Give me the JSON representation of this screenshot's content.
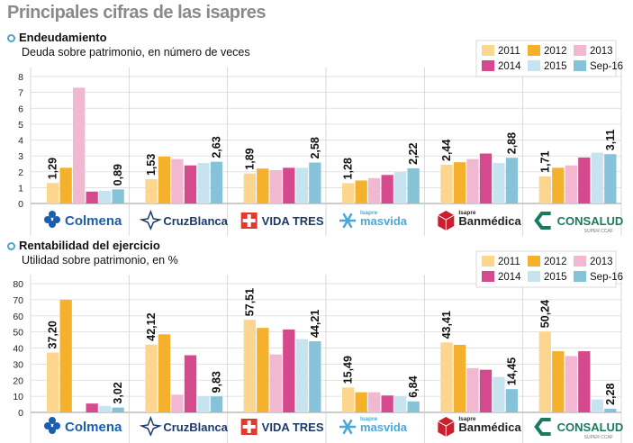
{
  "page_title": "Principales cifras de las isapres",
  "legend": [
    {
      "label": "2011",
      "color": "#fcd68f"
    },
    {
      "label": "2012",
      "color": "#f5b02c"
    },
    {
      "label": "2013",
      "color": "#f2b8d2"
    },
    {
      "label": "2014",
      "color": "#d44a8c"
    },
    {
      "label": "2015",
      "color": "#c7e3ef"
    },
    {
      "label": "Sep-16",
      "color": "#86c3d8"
    }
  ],
  "companies": [
    {
      "name": "Colmena",
      "logo_color": "#1a5fae",
      "icon": "colmena-cross-icon"
    },
    {
      "name": "CruzBlanca",
      "logo_color": "#1b3a6b",
      "icon": "cruzblanca-star-icon"
    },
    {
      "name": "VIDA TRES",
      "logo_color": "#1b3a6b",
      "icon": "vidatres-cross-icon"
    },
    {
      "name": "masvida",
      "prefix": "Isapre",
      "logo_color": "#4aa8d8",
      "icon": "masvida-snowflake-icon"
    },
    {
      "name": "Banmédica",
      "prefix": "Isapre",
      "logo_color": "#222222",
      "icon": "banmedica-cube-icon"
    },
    {
      "name": "CONSALUD",
      "suffix": "SUPER CCAF",
      "logo_color": "#1a7a5e",
      "icon": "consalud-c-icon"
    }
  ],
  "chart_data": [
    {
      "type": "bar",
      "heading": "Endeudamiento",
      "subtitle": "Deuda sobre patrimonio, en número de veces",
      "categories": [
        "Colmena",
        "CruzBlanca",
        "VIDA TRES",
        "masvida",
        "Banmédica",
        "CONSALUD"
      ],
      "series": [
        {
          "name": "2011",
          "values": [
            1.29,
            1.53,
            1.89,
            1.28,
            2.44,
            1.71
          ]
        },
        {
          "name": "2012",
          "values": [
            2.25,
            2.95,
            2.2,
            1.45,
            2.6,
            2.25
          ]
        },
        {
          "name": "2013",
          "values": [
            7.3,
            2.8,
            2.1,
            1.6,
            2.8,
            2.4
          ]
        },
        {
          "name": "2014",
          "values": [
            0.75,
            2.4,
            2.25,
            1.8,
            3.15,
            2.9
          ]
        },
        {
          "name": "2015",
          "values": [
            0.8,
            2.55,
            2.25,
            2.0,
            2.55,
            3.2
          ]
        },
        {
          "name": "Sep-16",
          "values": [
            0.89,
            2.63,
            2.58,
            2.22,
            2.88,
            3.11
          ]
        }
      ],
      "data_labels": [
        {
          "category": "Colmena",
          "series": "2011",
          "text": "1,29"
        },
        {
          "category": "Colmena",
          "series": "Sep-16",
          "text": "0,89"
        },
        {
          "category": "CruzBlanca",
          "series": "2011",
          "text": "1,53"
        },
        {
          "category": "CruzBlanca",
          "series": "Sep-16",
          "text": "2,63"
        },
        {
          "category": "VIDA TRES",
          "series": "2011",
          "text": "1,89"
        },
        {
          "category": "VIDA TRES",
          "series": "Sep-16",
          "text": "2,58"
        },
        {
          "category": "masvida",
          "series": "2011",
          "text": "1,28"
        },
        {
          "category": "masvida",
          "series": "Sep-16",
          "text": "2,22"
        },
        {
          "category": "Banmédica",
          "series": "2011",
          "text": "2,44"
        },
        {
          "category": "Banmédica",
          "series": "Sep-16",
          "text": "2,88"
        },
        {
          "category": "CONSALUD",
          "series": "2011",
          "text": "1,71"
        },
        {
          "category": "CONSALUD",
          "series": "Sep-16",
          "text": "3,11"
        }
      ],
      "ylim": [
        0,
        8
      ],
      "yticks": [
        0,
        1,
        2,
        3,
        4,
        5,
        6,
        7,
        8
      ],
      "grid": true,
      "legend_position": "top-right"
    },
    {
      "type": "bar",
      "heading": "Rentabilidad del ejercicio",
      "subtitle": "Utilidad sobre patrimonio, en %",
      "categories": [
        "Colmena",
        "CruzBlanca",
        "VIDA TRES",
        "masvida",
        "Banmédica",
        "CONSALUD"
      ],
      "series": [
        {
          "name": "2011",
          "values": [
            37.2,
            42.12,
            57.51,
            15.49,
            43.41,
            50.24
          ]
        },
        {
          "name": "2012",
          "values": [
            70,
            48.5,
            52.5,
            12.5,
            42,
            38
          ]
        },
        {
          "name": "2013",
          "values": [
            0,
            11,
            36,
            12.5,
            27.5,
            35
          ]
        },
        {
          "name": "2014",
          "values": [
            5.5,
            35.5,
            51.5,
            10.5,
            26.5,
            38
          ]
        },
        {
          "name": "2015",
          "values": [
            4,
            10,
            45.5,
            10,
            22,
            8
          ]
        },
        {
          "name": "Sep-16",
          "values": [
            3.02,
            9.83,
            44.21,
            6.84,
            14.45,
            2.28
          ]
        }
      ],
      "data_labels": [
        {
          "category": "Colmena",
          "series": "2011",
          "text": "37,20"
        },
        {
          "category": "Colmena",
          "series": "Sep-16",
          "text": "3,02"
        },
        {
          "category": "CruzBlanca",
          "series": "2011",
          "text": "42,12"
        },
        {
          "category": "CruzBlanca",
          "series": "Sep-16",
          "text": "9,83"
        },
        {
          "category": "VIDA TRES",
          "series": "2011",
          "text": "57,51"
        },
        {
          "category": "VIDA TRES",
          "series": "Sep-16",
          "text": "44,21"
        },
        {
          "category": "masvida",
          "series": "2011",
          "text": "15,49"
        },
        {
          "category": "masvida",
          "series": "Sep-16",
          "text": "6,84"
        },
        {
          "category": "Banmédica",
          "series": "2011",
          "text": "43,41"
        },
        {
          "category": "Banmédica",
          "series": "Sep-16",
          "text": "14,45"
        },
        {
          "category": "CONSALUD",
          "series": "2011",
          "text": "50,24"
        },
        {
          "category": "CONSALUD",
          "series": "Sep-16",
          "text": "2,28"
        }
      ],
      "ylim": [
        0,
        80
      ],
      "yticks": [
        0,
        10,
        20,
        30,
        40,
        50,
        60,
        70,
        80
      ],
      "grid": true,
      "legend_position": "top-right"
    }
  ]
}
